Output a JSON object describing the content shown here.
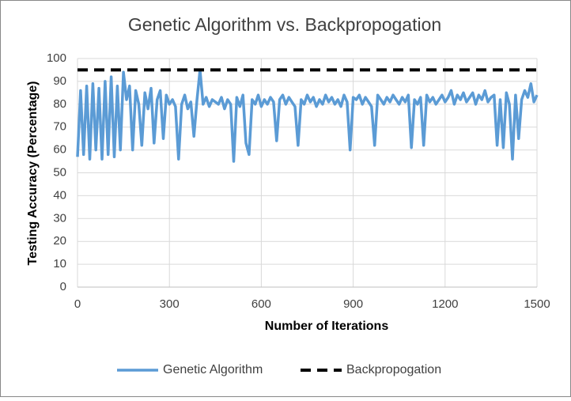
{
  "chart_data": {
    "type": "line",
    "title": "Genetic Algorithm vs. Backpropogation",
    "x_label": "Number of Iterations",
    "y_label": "Testing Accuracy (Percentage)",
    "xlim": [
      0,
      1500
    ],
    "xticks": [
      0,
      300,
      600,
      900,
      1200,
      1500
    ],
    "ylim": [
      0,
      100
    ],
    "yticks": [
      0,
      10,
      20,
      30,
      40,
      50,
      60,
      70,
      80,
      90,
      100
    ],
    "grid": true,
    "legend": "bottom",
    "series": [
      {
        "name": "Genetic Algorithm",
        "color": "#5b9bd5",
        "style": "solid",
        "x": [
          0,
          10,
          20,
          30,
          40,
          50,
          60,
          70,
          80,
          90,
          100,
          110,
          120,
          130,
          140,
          150,
          160,
          170,
          180,
          190,
          200,
          210,
          220,
          230,
          240,
          250,
          260,
          270,
          280,
          290,
          300,
          310,
          320,
          330,
          340,
          350,
          360,
          370,
          380,
          390,
          400,
          410,
          420,
          430,
          440,
          450,
          460,
          470,
          480,
          490,
          500,
          510,
          520,
          530,
          540,
          550,
          560,
          570,
          580,
          590,
          600,
          610,
          620,
          630,
          640,
          650,
          660,
          670,
          680,
          690,
          700,
          710,
          720,
          730,
          740,
          750,
          760,
          770,
          780,
          790,
          800,
          810,
          820,
          830,
          840,
          850,
          860,
          870,
          880,
          890,
          900,
          910,
          920,
          930,
          940,
          950,
          960,
          970,
          980,
          990,
          1000,
          1010,
          1020,
          1030,
          1040,
          1050,
          1060,
          1070,
          1080,
          1090,
          1100,
          1110,
          1120,
          1130,
          1140,
          1150,
          1160,
          1170,
          1180,
          1190,
          1200,
          1210,
          1220,
          1230,
          1240,
          1250,
          1260,
          1270,
          1280,
          1290,
          1300,
          1310,
          1320,
          1330,
          1340,
          1350,
          1360,
          1370,
          1380,
          1390,
          1400,
          1410,
          1420,
          1430,
          1440,
          1450,
          1460,
          1470,
          1480,
          1490,
          1500
        ],
        "values": [
          57,
          86,
          58,
          88,
          56,
          89,
          60,
          87,
          56,
          90,
          58,
          92,
          57,
          88,
          60,
          94,
          82,
          88,
          60,
          86,
          80,
          62,
          85,
          78,
          87,
          63,
          82,
          86,
          65,
          84,
          80,
          82,
          79,
          56,
          80,
          84,
          78,
          81,
          66,
          82,
          95,
          80,
          83,
          79,
          82,
          81,
          80,
          83,
          78,
          82,
          80,
          55,
          83,
          79,
          84,
          63,
          58,
          82,
          80,
          84,
          79,
          82,
          80,
          83,
          81,
          64,
          82,
          84,
          80,
          83,
          81,
          79,
          62,
          82,
          80,
          84,
          81,
          83,
          79,
          82,
          80,
          84,
          81,
          83,
          80,
          82,
          79,
          84,
          81,
          60,
          83,
          82,
          84,
          80,
          83,
          81,
          79,
          62,
          84,
          82,
          80,
          83,
          81,
          84,
          82,
          80,
          83,
          81,
          84,
          61,
          82,
          80,
          83,
          62,
          84,
          81,
          83,
          80,
          82,
          84,
          81,
          83,
          86,
          80,
          84,
          82,
          85,
          81,
          83,
          85,
          80,
          84,
          82,
          86,
          81,
          83,
          84,
          62,
          82,
          61,
          85,
          80,
          56,
          84,
          65,
          82,
          86,
          83,
          89,
          81,
          84
        ]
      },
      {
        "name": "Backpropogation",
        "color": "#000000",
        "style": "dashed",
        "x": [
          0,
          1500
        ],
        "values": [
          95,
          95
        ]
      }
    ]
  }
}
